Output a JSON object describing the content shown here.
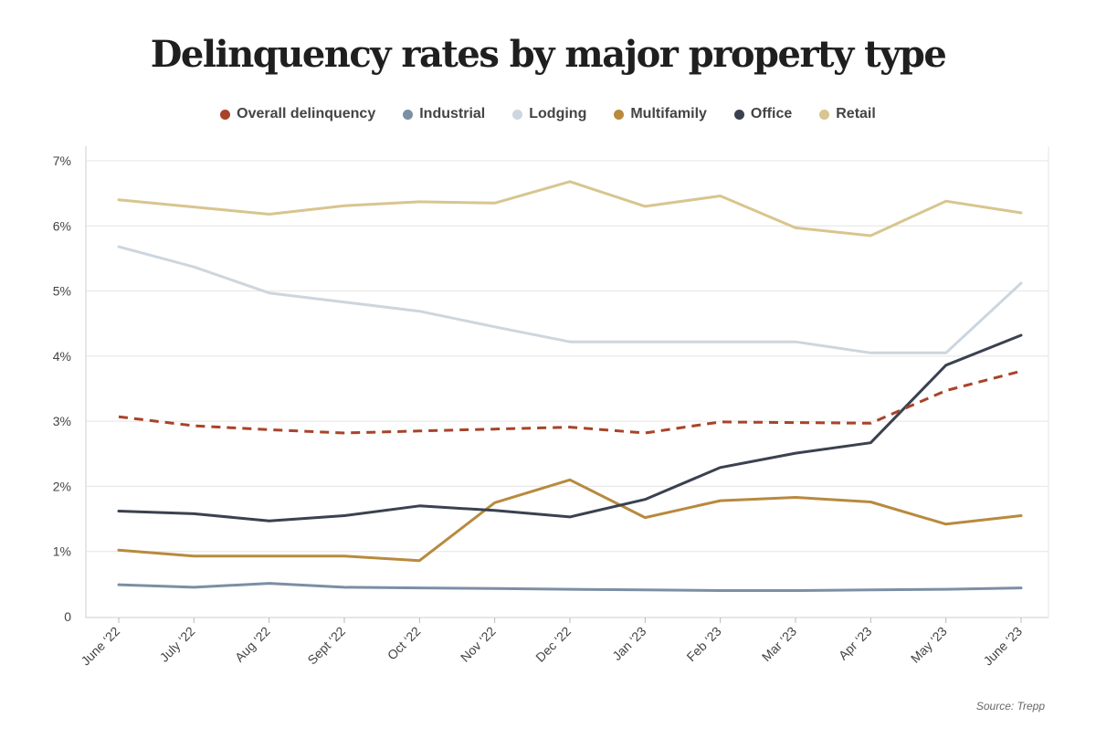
{
  "chart_data": {
    "type": "line",
    "title": "Delinquency rates by major property type",
    "source": "Source: Trepp",
    "categories": [
      "June ‘22",
      "July ‘22",
      "Aug ‘22",
      "Sept ‘22",
      "Oct ‘22",
      "Nov ‘22",
      "Dec ‘22",
      "Jan ‘23",
      "Feb ‘23",
      "Mar ‘23",
      "Apr ‘23",
      "May ‘23",
      "June ‘23"
    ],
    "y_ticks": [
      "0",
      "1%",
      "2%",
      "3%",
      "4%",
      "5%",
      "6%",
      "7%"
    ],
    "ylim": [
      0,
      7
    ],
    "grid": true,
    "legend_position": "top",
    "series": [
      {
        "name": "Overall delinquency",
        "color": "#a8432a",
        "dashed": true,
        "values": [
          3.07,
          2.93,
          2.87,
          2.82,
          2.85,
          2.88,
          2.91,
          2.82,
          2.99,
          2.98,
          2.97,
          3.47,
          3.77
        ]
      },
      {
        "name": "Industrial",
        "color": "#7b8fa5",
        "dashed": false,
        "values": [
          0.49,
          0.45,
          0.51,
          0.45,
          0.44,
          0.43,
          0.42,
          0.41,
          0.4,
          0.4,
          0.41,
          0.42,
          0.44
        ]
      },
      {
        "name": "Lodging",
        "color": "#cdd6de",
        "dashed": false,
        "values": [
          5.68,
          5.37,
          4.97,
          4.83,
          4.69,
          4.45,
          4.22,
          4.22,
          4.22,
          4.22,
          4.05,
          4.05,
          5.12
        ]
      },
      {
        "name": "Multifamily",
        "color": "#b88a3e",
        "dashed": false,
        "values": [
          1.02,
          0.93,
          0.93,
          0.93,
          0.86,
          1.75,
          2.1,
          1.52,
          1.78,
          1.83,
          1.76,
          1.42,
          1.55
        ]
      },
      {
        "name": "Office",
        "color": "#3a4150",
        "dashed": false,
        "values": [
          1.62,
          1.58,
          1.47,
          1.55,
          1.7,
          1.63,
          1.53,
          1.8,
          2.29,
          2.51,
          2.67,
          3.86,
          4.32
        ]
      },
      {
        "name": "Retail",
        "color": "#d8c58f",
        "dashed": false,
        "values": [
          6.4,
          6.29,
          6.18,
          6.31,
          6.37,
          6.35,
          6.68,
          6.3,
          6.46,
          5.97,
          5.85,
          6.38,
          6.2
        ]
      }
    ]
  }
}
